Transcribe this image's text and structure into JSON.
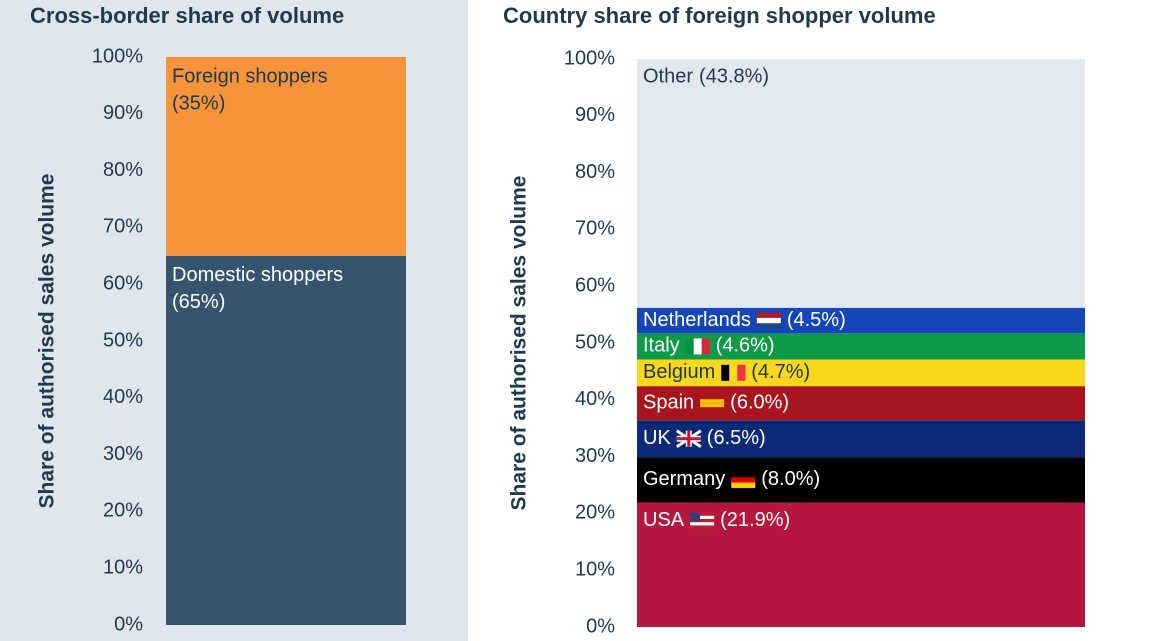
{
  "chart_data": [
    {
      "type": "bar",
      "title": "Cross-border share of volume",
      "y_label": "Share of authorised sales volume",
      "ylim": [
        0,
        100
      ],
      "yticks": [
        {
          "value": 0,
          "label": "0%"
        },
        {
          "value": 10,
          "label": "10%"
        },
        {
          "value": 20,
          "label": "20%"
        },
        {
          "value": 30,
          "label": "30%"
        },
        {
          "value": 40,
          "label": "40%"
        },
        {
          "value": 50,
          "label": "50%"
        },
        {
          "value": 60,
          "label": "60%"
        },
        {
          "value": 70,
          "label": "70%"
        },
        {
          "value": 80,
          "label": "80%"
        },
        {
          "value": 90,
          "label": "90%"
        },
        {
          "value": 100,
          "label": "100%"
        }
      ],
      "series": [
        {
          "name": "Domestic shoppers",
          "color": "#36546e",
          "values": [
            65
          ],
          "value_labels": [
            "(65%)"
          ]
        },
        {
          "name": "Foreign shoppers",
          "color": "#f7943a",
          "values": [
            35
          ],
          "value_labels": [
            "(35%)"
          ]
        }
      ]
    },
    {
      "type": "bar",
      "title": "Country share of foreign shopper volume",
      "y_label": "Share of authorised sales volume",
      "ylim": [
        0,
        100
      ],
      "yticks": [
        {
          "value": 0,
          "label": "0%"
        },
        {
          "value": 10,
          "label": "10%"
        },
        {
          "value": 20,
          "label": "20%"
        },
        {
          "value": 30,
          "label": "30%"
        },
        {
          "value": 40,
          "label": "40%"
        },
        {
          "value": 50,
          "label": "50%"
        },
        {
          "value": 60,
          "label": "60%"
        },
        {
          "value": 70,
          "label": "70%"
        },
        {
          "value": 80,
          "label": "80%"
        },
        {
          "value": 90,
          "label": "90%"
        },
        {
          "value": 100,
          "label": "100%"
        }
      ],
      "series": [
        {
          "name": "USA",
          "color": "#b5173f",
          "values": [
            21.9
          ],
          "value_labels": [
            "(21.9%)"
          ]
        },
        {
          "name": "Germany",
          "color": "#000000",
          "values": [
            8.0
          ],
          "value_labels": [
            "(8.0%)"
          ]
        },
        {
          "name": "UK",
          "color": "#0b2a78",
          "values": [
            6.5
          ],
          "value_labels": [
            "(6.5%)"
          ]
        },
        {
          "name": "Spain",
          "color": "#a8151f",
          "values": [
            6.0
          ],
          "value_labels": [
            "(6.0%)"
          ]
        },
        {
          "name": "Belgium",
          "color": "#f9d71c",
          "values": [
            4.7
          ],
          "value_labels": [
            "(4.7%)"
          ]
        },
        {
          "name": "Italy",
          "color": "#0f9a48",
          "values": [
            4.6
          ],
          "value_labels": [
            "(4.6%)"
          ]
        },
        {
          "name": "Netherlands",
          "color": "#1446b8",
          "values": [
            4.5
          ],
          "value_labels": [
            "(4.5%)"
          ]
        },
        {
          "name": "Other",
          "color": "#e2e8ef",
          "values": [
            43.8
          ],
          "value_labels": [
            "(43.8%)"
          ]
        }
      ]
    }
  ]
}
